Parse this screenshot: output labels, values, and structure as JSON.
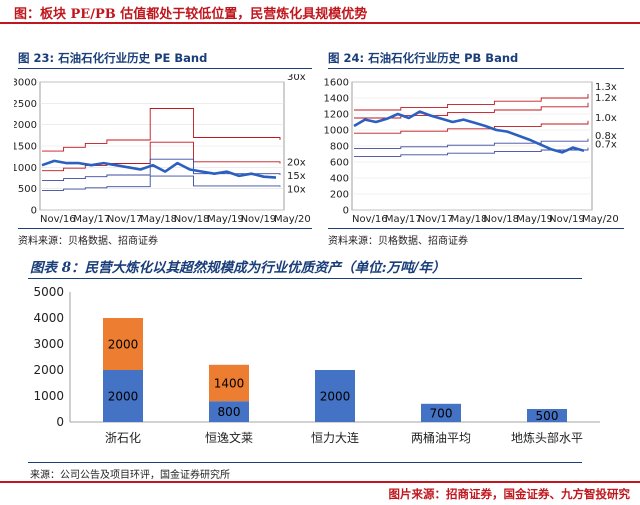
{
  "header": {
    "title": "图：板块 PE/PB 估值都处于较低位置，民营炼化具规模优势"
  },
  "footer": {
    "text": "图片来源：招商证券，国金证券、九方智投研究"
  },
  "left_panel": {
    "title": "图 23: 石油石化行业历史 PE Band",
    "source": "资料来源：贝格数据、招商证券"
  },
  "right_panel": {
    "title": "图 24: 石油石化行业历史 PB Band",
    "source": "资料来源：贝格数据、招商证券"
  },
  "bottom_panel": {
    "title": "图表 8：民营大炼化以其超然规模成为行业优质资产（单位:万吨/年）",
    "source": "来源：公司公告及项目环评，国金证券研究所"
  },
  "chart_data": [
    {
      "type": "line",
      "name": "PE Band",
      "x_ticks": [
        "Nov/16",
        "May/17",
        "Nov/17",
        "May/18",
        "Nov/18",
        "May/19",
        "Nov/19",
        "May/20"
      ],
      "y_ticks": [
        0,
        500,
        1000,
        1500,
        2000,
        2500,
        3000
      ],
      "ylim": [
        0,
        3000
      ],
      "band_labels": [
        "30x",
        "20x",
        "15x",
        "10x"
      ],
      "colors": {
        "band": "#c0161d",
        "low_band": "#3a4aa0",
        "index": "#2b5fc0"
      },
      "bands": [
        {
          "label": "30x",
          "values": [
            1380,
            1470,
            1560,
            1640,
            1640,
            2380,
            2380,
            1700,
            1700,
            1700,
            1700,
            1640
          ]
        },
        {
          "label": "20x",
          "values": [
            920,
            980,
            1040,
            1090,
            1090,
            1590,
            1590,
            1130,
            1130,
            1130,
            1130,
            1090
          ]
        },
        {
          "label": "15x",
          "values": [
            690,
            735,
            780,
            820,
            820,
            1190,
            1190,
            850,
            850,
            850,
            850,
            820
          ]
        },
        {
          "label": "10x",
          "values": [
            460,
            490,
            520,
            545,
            545,
            795,
            795,
            565,
            565,
            565,
            565,
            545
          ]
        }
      ],
      "index_values": [
        1050,
        1150,
        1100,
        1100,
        1050,
        1100,
        1050,
        1000,
        950,
        1050,
        900,
        1100,
        950,
        900,
        850,
        900,
        800,
        850,
        780,
        760
      ]
    },
    {
      "type": "line",
      "name": "PB Band",
      "x_ticks": [
        "Nov/16",
        "May/17",
        "Nov/17",
        "May/18",
        "Nov/18",
        "May/19",
        "Nov/19",
        "May/20"
      ],
      "y_ticks": [
        0,
        200,
        400,
        600,
        800,
        1000,
        1200,
        1400,
        1600
      ],
      "ylim": [
        0,
        1600
      ],
      "band_labels": [
        "1.3x",
        "1.2x",
        "1.0x",
        "0.8x",
        "0.7x"
      ],
      "colors": {
        "band": "#c0161d",
        "low_band": "#3a4aa0",
        "index": "#2b5fc0"
      },
      "bands": [
        {
          "label": "1.3x",
          "values": [
            1250,
            1280,
            1320,
            1360,
            1400,
            1450
          ]
        },
        {
          "label": "1.2x",
          "values": [
            1150,
            1180,
            1220,
            1250,
            1290,
            1340
          ]
        },
        {
          "label": "1.0x",
          "values": [
            960,
            985,
            1015,
            1045,
            1075,
            1115
          ]
        },
        {
          "label": "0.8x",
          "values": [
            770,
            790,
            810,
            835,
            860,
            890
          ]
        },
        {
          "label": "0.7x",
          "values": [
            670,
            690,
            710,
            730,
            750,
            780
          ]
        }
      ],
      "index_values": [
        1050,
        1130,
        1100,
        1140,
        1200,
        1150,
        1230,
        1180,
        1140,
        1100,
        1130,
        1090,
        1050,
        1000,
        980,
        930,
        880,
        820,
        760,
        720,
        780,
        740
      ]
    },
    {
      "type": "bar",
      "name": "refinery capacity",
      "stacked": true,
      "categories": [
        "浙石化",
        "恒逸文莱",
        "恒力大连",
        "两桶油平均",
        "地炼头部水平"
      ],
      "series": [
        {
          "name": "",
          "color": "#4472c4",
          "values": [
            2000,
            800,
            2000,
            700,
            500
          ]
        },
        {
          "name": "",
          "color": "#ed7d31",
          "values": [
            2000,
            1400,
            0,
            0,
            0
          ]
        }
      ],
      "ylim": [
        0,
        5000
      ],
      "y_ticks": [
        0,
        1000,
        2000,
        3000,
        4000,
        5000
      ],
      "grid": false
    }
  ]
}
